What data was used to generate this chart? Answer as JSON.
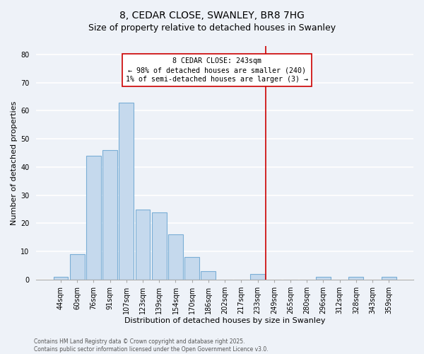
{
  "title": "8, CEDAR CLOSE, SWANLEY, BR8 7HG",
  "subtitle": "Size of property relative to detached houses in Swanley",
  "xlabel": "Distribution of detached houses by size in Swanley",
  "ylabel": "Number of detached properties",
  "bar_color": "#c5d9ed",
  "bar_edge_color": "#7aaed6",
  "bins": [
    "44sqm",
    "60sqm",
    "76sqm",
    "91sqm",
    "107sqm",
    "123sqm",
    "139sqm",
    "154sqm",
    "170sqm",
    "186sqm",
    "202sqm",
    "217sqm",
    "233sqm",
    "249sqm",
    "265sqm",
    "280sqm",
    "296sqm",
    "312sqm",
    "328sqm",
    "343sqm",
    "359sqm"
  ],
  "values": [
    1,
    9,
    44,
    46,
    63,
    25,
    24,
    16,
    8,
    3,
    0,
    0,
    2,
    0,
    0,
    0,
    1,
    0,
    1,
    0,
    1
  ],
  "vline_idx": 13,
  "vline_color": "#cc0000",
  "annotation_title": "8 CEDAR CLOSE: 243sqm",
  "annotation_line1": "← 98% of detached houses are smaller (240)",
  "annotation_line2": "1% of semi-detached houses are larger (3) →",
  "ylim": [
    0,
    83
  ],
  "yticks": [
    0,
    10,
    20,
    30,
    40,
    50,
    60,
    70,
    80
  ],
  "footer1": "Contains HM Land Registry data © Crown copyright and database right 2025.",
  "footer2": "Contains public sector information licensed under the Open Government Licence v3.0.",
  "bg_color": "#eef2f8",
  "grid_color": "#ffffff",
  "title_fontsize": 10,
  "subtitle_fontsize": 9,
  "axis_label_fontsize": 8,
  "tick_fontsize": 7
}
